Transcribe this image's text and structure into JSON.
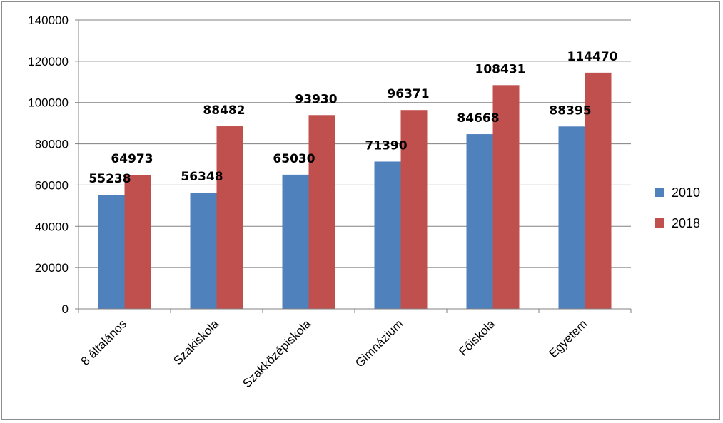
{
  "chart_data": {
    "type": "bar",
    "categories": [
      "8 általános",
      "Szakiskola",
      "Szakközépiskola",
      "Gimnázium",
      "Főiskola",
      "Egyetem"
    ],
    "series": [
      {
        "name": "2010",
        "color": "#4f81bd",
        "values": [
          55238,
          56348,
          65030,
          71390,
          84668,
          88395
        ]
      },
      {
        "name": "2018",
        "color": "#c0504d",
        "values": [
          64973,
          88482,
          93930,
          96371,
          108431,
          114470
        ]
      }
    ],
    "ylim": [
      0,
      140000
    ],
    "yticks": [
      "0",
      "20000",
      "40000",
      "60000",
      "80000",
      "100000",
      "120000",
      "140000"
    ],
    "grid": true,
    "legend": "right",
    "data_labels": true
  }
}
